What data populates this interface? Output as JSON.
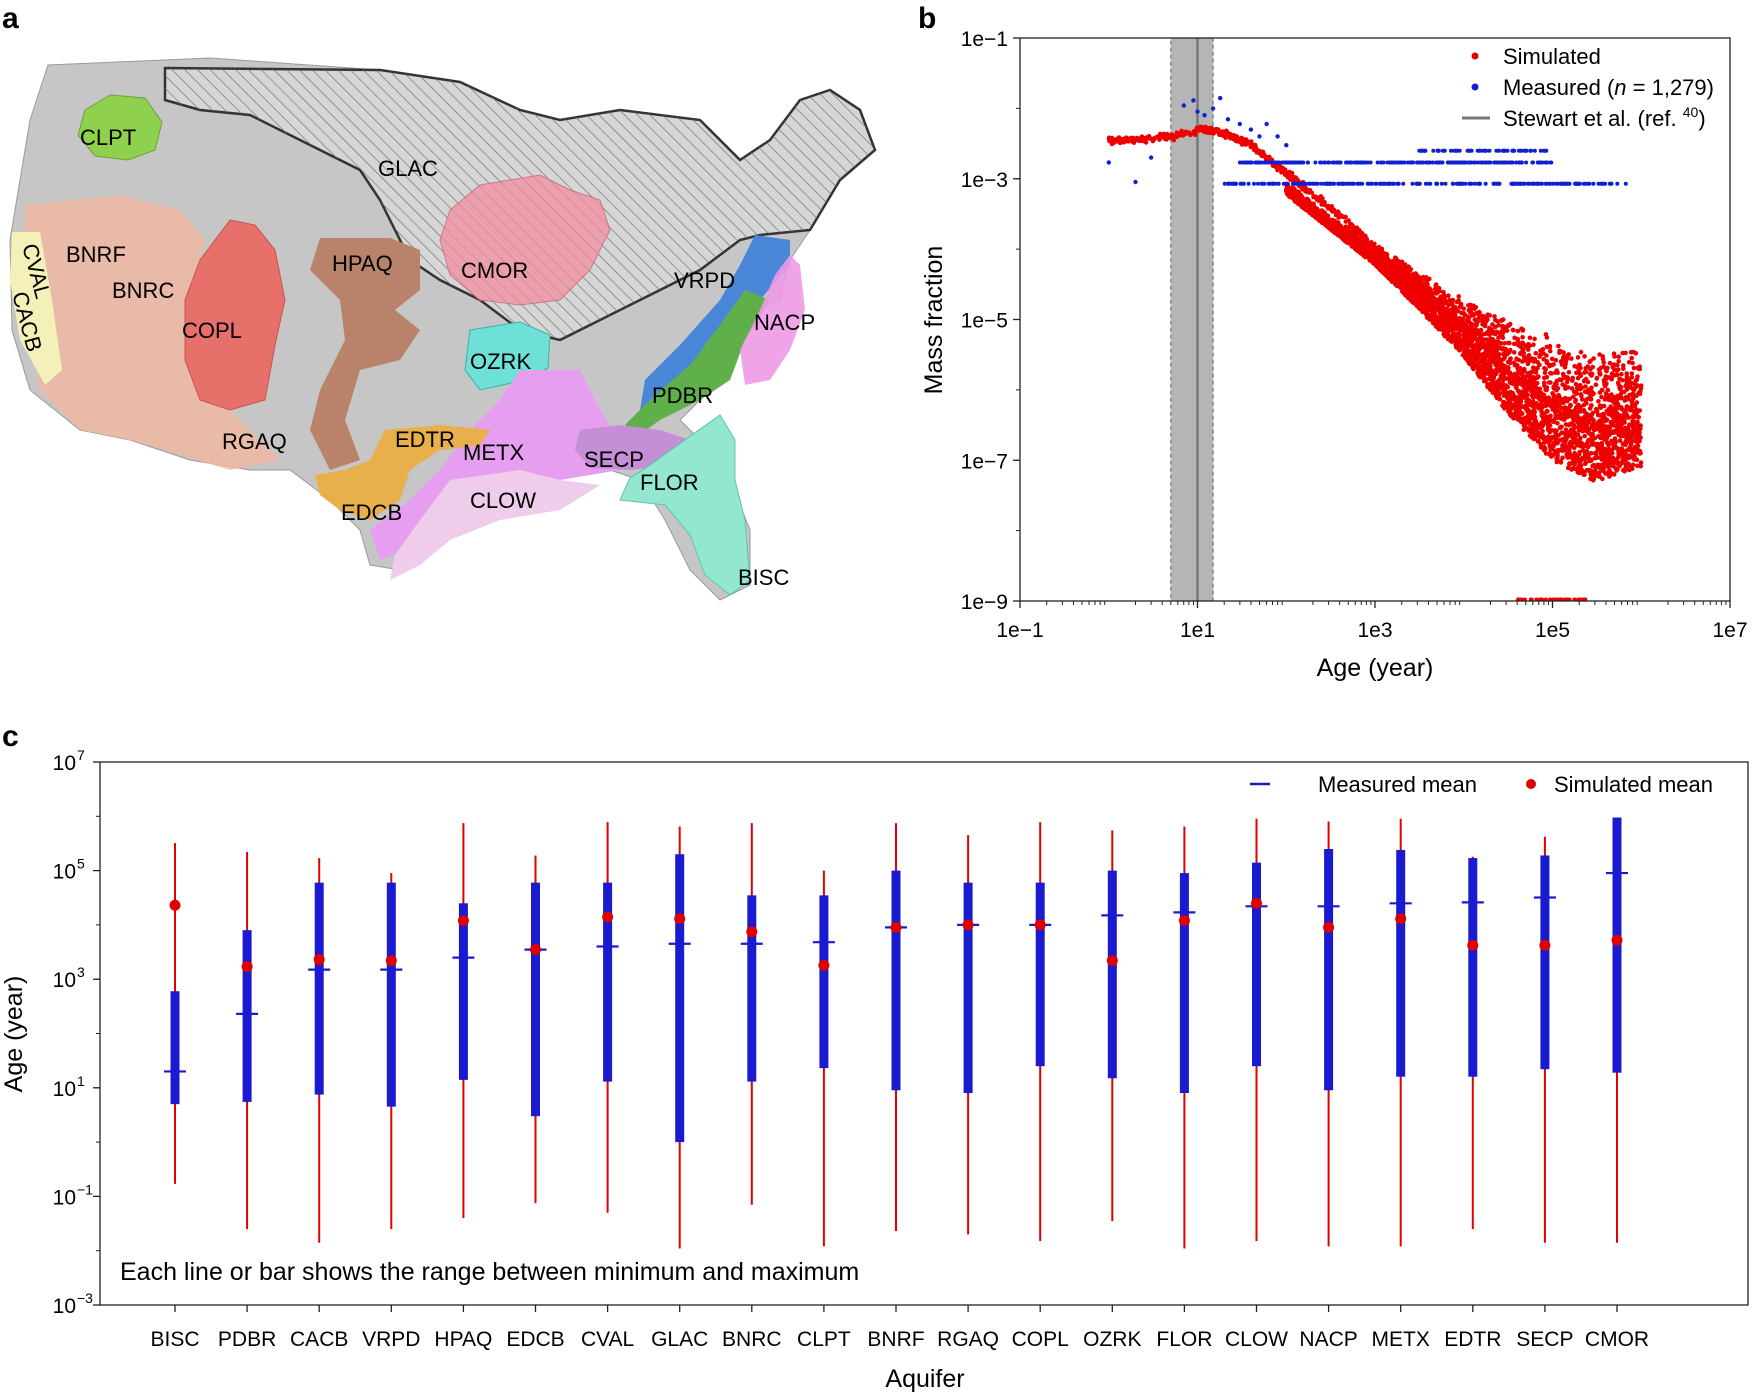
{
  "figure": {
    "panel_labels": [
      "a",
      "b",
      "c"
    ]
  },
  "map": {
    "region_labels": [
      "CLPT",
      "GLAC",
      "BNRF",
      "CVAL",
      "CACB",
      "BNRC",
      "COPL",
      "HPAQ",
      "CMOR",
      "VRPD",
      "NACP",
      "OZRK",
      "PDBR",
      "RGAQ",
      "EDTR",
      "METX",
      "SECP",
      "FLOR",
      "CLOW",
      "EDCB",
      "BISC"
    ],
    "colors": {
      "land": "#c4c4c4",
      "glac": "#d8d8d8",
      "clpt": "#8fd14f",
      "copl": "#e8706a",
      "bnrf": "#f1b79f",
      "hpaq": "#b9826b",
      "cmor": "#ee9fae",
      "ozrk": "#6ee0d8",
      "vrpd": "#4a86d8",
      "pdbr": "#5fb04b",
      "nacp": "#ee9ae6",
      "metx": "#e69ef0",
      "clow": "#eeccea",
      "edtr": "#e7b04a",
      "secp": "#c58fd8",
      "flor": "#93e7d0",
      "cval": "#f3f0b8"
    }
  },
  "chart_data": [
    {
      "panel": "b",
      "type": "scatter",
      "xlabel": "Age (year)",
      "ylabel": "Mass fraction",
      "xscale": "log",
      "yscale": "log",
      "xlim": [
        0.1,
        10000000
      ],
      "ylim": [
        1e-09,
        0.1
      ],
      "x_ticks": [
        0.1,
        10,
        1000,
        100000,
        10000000
      ],
      "x_tick_labels": [
        "1e−1",
        "1e1",
        "1e3",
        "1e5",
        "1e7"
      ],
      "y_ticks": [
        1e-09,
        1e-07,
        1e-05,
        0.001,
        0.1
      ],
      "y_tick_labels": [
        "1e−9",
        "1e−7",
        "1e−5",
        "1e−3",
        "1e−1"
      ],
      "legend": {
        "location": "top-right",
        "simulated": "Simulated",
        "measured_prefix": "Measured (",
        "measured_n": "n",
        "measured_suffix": " = 1,279)",
        "stewart": "Stewart et al. (ref. ",
        "stewart_sup": "40",
        "stewart_close": ")"
      },
      "stewart_band": {
        "center": 10,
        "low": 5,
        "high": 15
      },
      "simulated_curve": {
        "x": [
          1,
          2,
          3,
          5,
          8,
          12,
          20,
          40,
          80,
          200,
          500,
          1000,
          3000,
          10000,
          30000,
          100000,
          300000,
          1000000
        ],
        "y": [
          0.0035,
          0.0035,
          0.0036,
          0.004,
          0.0045,
          0.005,
          0.0045,
          0.003,
          0.0015,
          0.0006,
          0.00025,
          0.0001,
          3e-05,
          8e-06,
          2e-06,
          6e-07,
          3e-07,
          2e-07
        ]
      },
      "simulated_envelope": {
        "x": [
          100,
          300,
          1000,
          3000,
          10000,
          30000,
          100000,
          300000,
          1000000
        ],
        "y_upper": [
          0.0009,
          0.0003,
          0.00012,
          5e-05,
          2e-05,
          1e-05,
          6e-06,
          4e-06,
          4e-06
        ],
        "y_lower": [
          0.0006,
          0.0002,
          6e-05,
          1.5e-05,
          3e-06,
          5e-07,
          1e-07,
          5e-08,
          8e-08
        ]
      },
      "measured_levels": [
        {
          "y": 0.00085,
          "x_from": 20,
          "x_to": 700000
        },
        {
          "y": 0.0017,
          "x_from": 30,
          "x_to": 100000
        },
        {
          "y": 0.0025,
          "x_from": 3000,
          "x_to": 100000
        }
      ],
      "measured_scatter": {
        "x": [
          1,
          2,
          3,
          7,
          9,
          10,
          12,
          15,
          18,
          22,
          30,
          40,
          50,
          60,
          80,
          100
        ],
        "y": [
          0.0017,
          0.0009,
          0.002,
          0.011,
          0.013,
          0.009,
          0.008,
          0.01,
          0.014,
          0.007,
          0.006,
          0.005,
          0.004,
          0.006,
          0.004,
          0.003
        ]
      }
    },
    {
      "panel": "c",
      "type": "range-bar",
      "xlabel": "Aquifer",
      "ylabel": "Age (year)",
      "yscale": "log",
      "ylim": [
        0.001,
        10000000
      ],
      "y_ticks": [
        0.001,
        0.1,
        10,
        1000,
        100000,
        10000000
      ],
      "y_tick_base": "10",
      "y_tick_exponents": [
        "−3",
        "−1",
        "1",
        "3",
        "5",
        "7"
      ],
      "annotation": "Each line or bar shows the range between minimum and maximum",
      "legend": {
        "location": "top-right",
        "measured_mean": "Measured mean",
        "simulated_mean": "Simulated mean"
      },
      "categories": [
        "BISC",
        "PDBR",
        "CACB",
        "VRPD",
        "HPAQ",
        "EDCB",
        "CVAL",
        "GLAC",
        "BNRC",
        "CLPT",
        "BNRF",
        "RGAQ",
        "COPL",
        "OZRK",
        "FLOR",
        "CLOW",
        "NACP",
        "METX",
        "EDTR",
        "SECP",
        "CMOR"
      ],
      "series": [
        {
          "name": "Simulated range",
          "min": [
            0.17,
            0.025,
            0.014,
            0.025,
            0.04,
            0.075,
            0.05,
            0.011,
            0.07,
            0.012,
            0.023,
            0.02,
            0.015,
            0.035,
            0.011,
            0.015,
            0.012,
            0.012,
            0.025,
            0.014,
            0.014
          ],
          "max": [
            320000,
            220000,
            170000,
            90000,
            750000,
            190000,
            780000,
            650000,
            750000,
            100000,
            750000,
            450000,
            780000,
            550000,
            650000,
            900000,
            800000,
            900000,
            180000,
            420000,
            950000
          ]
        },
        {
          "name": "Measured range",
          "min": [
            5,
            5.5,
            7.5,
            4.5,
            14,
            3,
            13,
            1,
            13,
            23,
            9,
            8,
            25,
            15,
            8,
            25,
            9,
            16,
            16,
            22,
            19
          ],
          "max": [
            600,
            8000,
            60000,
            60000,
            25000,
            60000,
            60000,
            200000,
            35000,
            35000,
            100000,
            60000,
            60000,
            100000,
            90000,
            140000,
            250000,
            240000,
            170000,
            190000,
            950000
          ]
        },
        {
          "name": "Measured mean",
          "values": [
            20,
            230,
            1500,
            1500,
            2500,
            3500,
            4000,
            4500,
            4500,
            4800,
            9000,
            10000,
            10000,
            15000,
            17000,
            22000,
            22000,
            25000,
            26000,
            32000,
            90000
          ]
        },
        {
          "name": "Simulated mean",
          "values": [
            23000,
            1700,
            2300,
            2200,
            12000,
            3500,
            14000,
            13000,
            7500,
            1800,
            9000,
            10000,
            10000,
            2200,
            12000,
            25000,
            9000,
            13000,
            4200,
            4200,
            5200
          ]
        }
      ]
    }
  ]
}
